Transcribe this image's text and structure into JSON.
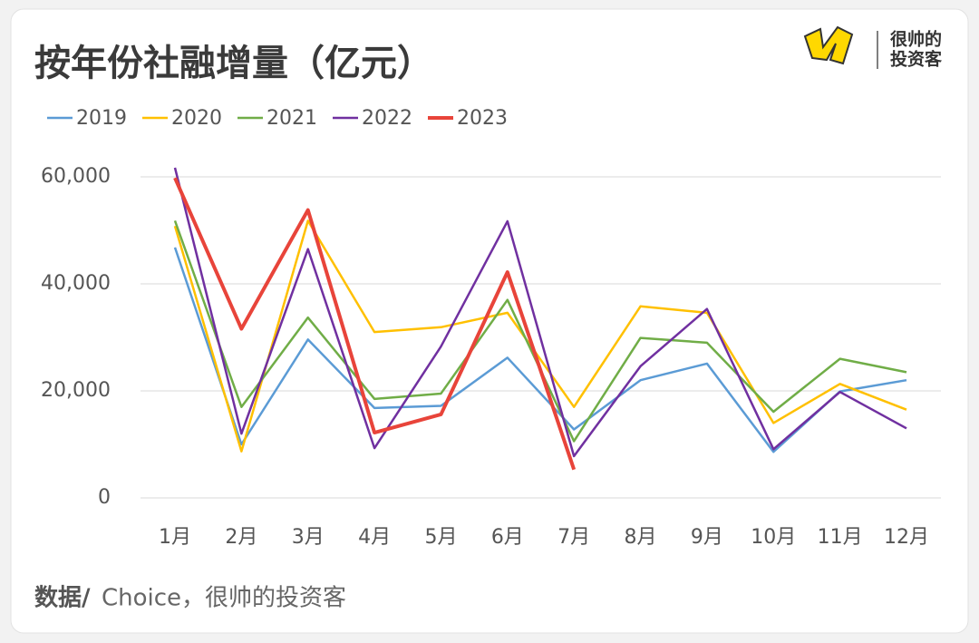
{
  "chart_data": {
    "type": "line",
    "title": "按年份社融增量（亿元）",
    "source_label": "数据/",
    "source": " Choice，很帅的投资客",
    "brand": [
      "很帅的",
      "投资客"
    ],
    "categories": [
      "1月",
      "2月",
      "3月",
      "4月",
      "5月",
      "6月",
      "7月",
      "8月",
      "9月",
      "10月",
      "11月",
      "12月"
    ],
    "series": [
      {
        "name": "2019",
        "color": "#5b9bd5",
        "values": [
          46800,
          10000,
          29600,
          16800,
          17200,
          26200,
          12800,
          22000,
          25100,
          8600,
          19900,
          22000
        ]
      },
      {
        "name": "2020",
        "color": "#ffc000",
        "values": [
          50800,
          8700,
          51800,
          31000,
          31900,
          34600,
          17000,
          35800,
          34600,
          14000,
          21300,
          16500
        ]
      },
      {
        "name": "2021",
        "color": "#70ad47",
        "values": [
          51800,
          17000,
          33700,
          18500,
          19500,
          37000,
          10600,
          29900,
          29000,
          16100,
          26000,
          23500
        ]
      },
      {
        "name": "2022",
        "color": "#7030a0",
        "values": [
          61700,
          12000,
          46500,
          9300,
          28300,
          51700,
          7800,
          24600,
          35300,
          9100,
          19800,
          13000
        ]
      },
      {
        "name": "2023",
        "color": "#e8443a",
        "values": [
          59800,
          31600,
          53800,
          12200,
          15600,
          42200,
          5300,
          null,
          null,
          null,
          null,
          null
        ]
      }
    ],
    "ylim": [
      0,
      60000
    ],
    "yticks": [
      0,
      {
        "value": 20000,
        "label": "20,000"
      },
      {
        "value": 40000,
        "label": "40,000"
      },
      {
        "value": 60000,
        "label": "60,000"
      }
    ],
    "grid": true,
    "legend": "top"
  }
}
